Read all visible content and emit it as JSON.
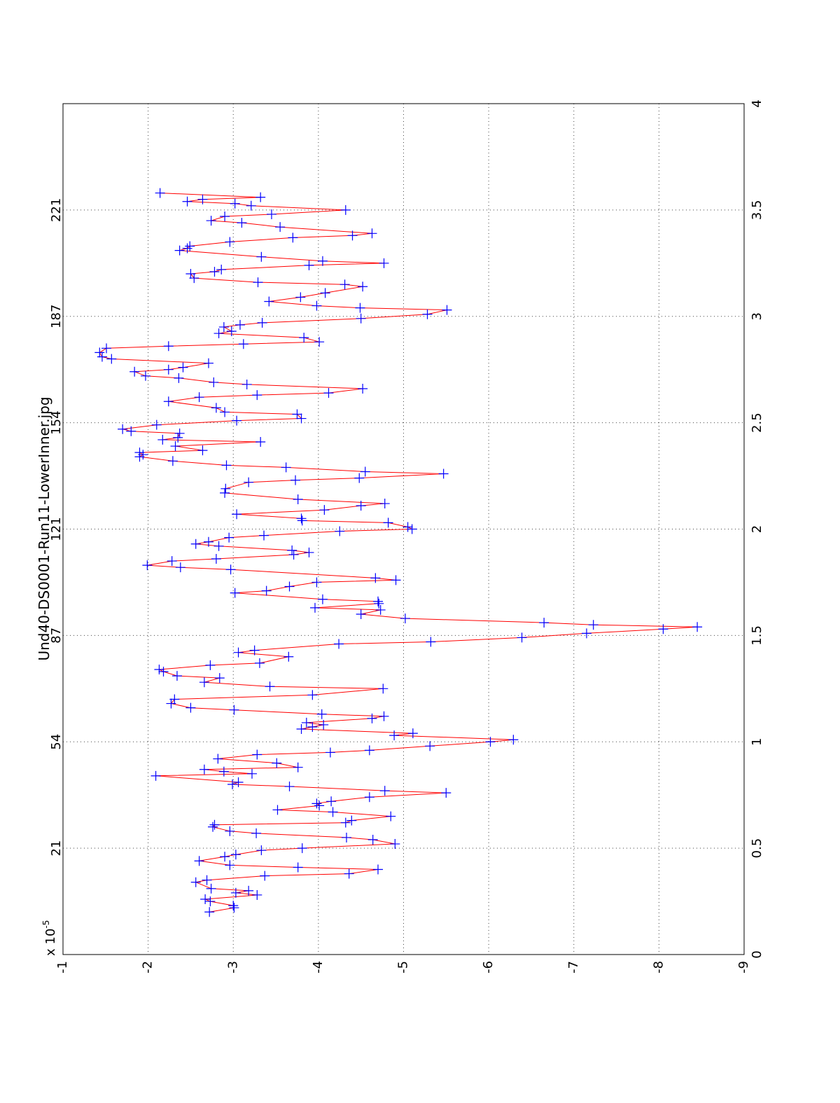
{
  "chart_data": {
    "type": "line",
    "title": "Und40-DS0001-Run11-LowerInner.jpg",
    "offset_text": {
      "base": "x 10",
      "exponent": "-5"
    },
    "annotations": [
      {
        "x": 0.5,
        "text": "21"
      },
      {
        "x": 1,
        "text": "54"
      },
      {
        "x": 1.5,
        "text": "87"
      },
      {
        "x": 2,
        "text": "121"
      },
      {
        "x": 2.5,
        "text": "154"
      },
      {
        "x": 3,
        "text": "187"
      },
      {
        "x": 3.5,
        "text": "221"
      }
    ],
    "xlim": [
      0,
      4
    ],
    "xticks": [
      0,
      0.5,
      1,
      1.5,
      2,
      2.5,
      3,
      3.5,
      4
    ],
    "ylim": [
      -1,
      -9
    ],
    "yticks": [
      -1,
      -2,
      -3,
      -4,
      -5,
      -6,
      -7,
      -8,
      -9
    ],
    "grid": true,
    "line_color": "#ff0000",
    "marker_color": "#0000ff",
    "x": [
      0.2,
      0.22,
      0.23,
      0.25,
      0.26,
      0.28,
      0.29,
      0.3,
      0.31,
      0.34,
      0.35,
      0.37,
      0.38,
      0.4,
      0.41,
      0.42,
      0.44,
      0.46,
      0.47,
      0.49,
      0.5,
      0.52,
      0.54,
      0.55,
      0.57,
      0.58,
      0.6,
      0.61,
      0.62,
      0.63,
      0.65,
      0.67,
      0.68,
      0.7,
      0.71,
      0.72,
      0.74,
      0.76,
      0.77,
      0.79,
      0.8,
      0.81,
      0.84,
      0.85,
      0.86,
      0.87,
      0.88,
      0.9,
      0.92,
      0.94,
      0.95,
      0.96,
      0.98,
      1.0,
      1.01,
      1.03,
      1.04,
      1.06,
      1.07,
      1.08,
      1.09,
      1.11,
      1.12,
      1.13,
      1.15,
      1.16,
      1.18,
      1.2,
      1.22,
      1.25,
      1.26,
      1.28,
      1.3,
      1.31,
      1.33,
      1.34,
      1.36,
      1.37,
      1.4,
      1.42,
      1.43,
      1.46,
      1.47,
      1.49,
      1.51,
      1.53,
      1.54,
      1.55,
      1.56,
      1.58,
      1.6,
      1.62,
      1.63,
      1.65,
      1.66,
      1.67,
      1.7,
      1.71,
      1.73,
      1.75,
      1.76,
      1.77,
      1.81,
      1.82,
      1.83,
      1.85,
      1.86,
      1.88,
      1.89,
      1.9,
      1.92,
      1.93,
      1.94,
      1.96,
      1.97,
      1.99,
      2.0,
      2.01,
      2.03,
      2.04,
      2.05,
      2.07,
      2.09,
      2.11,
      2.12,
      2.14,
      2.17,
      2.19,
      2.22,
      2.23,
      2.24,
      2.26,
      2.27,
      2.29,
      2.3,
      2.32,
      2.34,
      2.35,
      2.36,
      2.37,
      2.39,
      2.41,
      2.42,
      2.43,
      2.45,
      2.46,
      2.47,
      2.49,
      2.51,
      2.52,
      2.54,
      2.55,
      2.57,
      2.6,
      2.62,
      2.63,
      2.64,
      2.66,
      2.68,
      2.69,
      2.71,
      2.72,
      2.74,
      2.75,
      2.76,
      2.78,
      2.8,
      2.81,
      2.83,
      2.85,
      2.86,
      2.87,
      2.88,
      2.9,
      2.92,
      2.93,
      2.95,
      2.96,
      2.97,
      2.99,
      3.01,
      3.03,
      3.04,
      3.05,
      3.07,
      3.09,
      3.11,
      3.14,
      3.15,
      3.16,
      3.18,
      3.2,
      3.21,
      3.22,
      3.24,
      3.25,
      3.26,
      3.28,
      3.31,
      3.32,
      3.33,
      3.35,
      3.37,
      3.38,
      3.39,
      3.42,
      3.44,
      3.45,
      3.47,
      3.48,
      3.5,
      3.52,
      3.53,
      3.54,
      3.55,
      3.56,
      3.58
    ],
    "values": [
      -2.72,
      -3.01,
      -3.0,
      -2.73,
      -2.67,
      -3.28,
      -3.03,
      -3.18,
      -2.74,
      -2.56,
      -2.69,
      -3.37,
      -4.36,
      -4.7,
      -3.76,
      -2.96,
      -2.6,
      -2.9,
      -3.03,
      -3.33,
      -3.81,
      -4.9,
      -4.64,
      -4.33,
      -3.27,
      -2.96,
      -2.76,
      -2.78,
      -4.32,
      -4.39,
      -4.85,
      -4.17,
      -3.52,
      -4.01,
      -3.98,
      -4.15,
      -4.6,
      -5.5,
      -4.78,
      -3.66,
      -2.99,
      -3.06,
      -2.09,
      -3.22,
      -2.89,
      -2.66,
      -3.76,
      -3.51,
      -2.82,
      -3.28,
      -4.14,
      -4.6,
      -5.31,
      -6.02,
      -6.29,
      -4.89,
      -5.11,
      -3.8,
      -3.93,
      -4.06,
      -3.86,
      -4.63,
      -4.77,
      -4.04,
      -3.01,
      -2.5,
      -2.27,
      -2.31,
      -3.93,
      -4.76,
      -3.43,
      -2.66,
      -2.84,
      -2.34,
      -2.18,
      -2.13,
      -2.73,
      -3.31,
      -3.65,
      -3.06,
      -3.25,
      -4.24,
      -5.32,
      -6.39,
      -7.15,
      -8.05,
      -8.45,
      -7.23,
      -6.65,
      -5.02,
      -4.5,
      -4.73,
      -3.96,
      -4.71,
      -4.7,
      -4.05,
      -3.02,
      -3.39,
      -3.66,
      -3.98,
      -4.91,
      -4.67,
      -2.97,
      -2.38,
      -1.99,
      -2.28,
      -2.8,
      -3.71,
      -3.89,
      -3.69,
      -2.83,
      -2.56,
      -2.71,
      -2.95,
      -3.36,
      -4.25,
      -5.1,
      -5.05,
      -4.82,
      -3.81,
      -3.8,
      -3.04,
      -4.07,
      -4.5,
      -4.78,
      -3.76,
      -2.9,
      -2.91,
      -3.18,
      -3.73,
      -4.48,
      -5.47,
      -4.55,
      -3.62,
      -2.92,
      -2.29,
      -1.9,
      -1.94,
      -1.9,
      -2.64,
      -2.32,
      -3.32,
      -2.17,
      -2.35,
      -2.37,
      -1.8,
      -1.7,
      -2.1,
      -3.04,
      -3.8,
      -3.75,
      -2.9,
      -2.8,
      -2.24,
      -2.6,
      -3.28,
      -4.12,
      -4.52,
      -3.16,
      -2.77,
      -2.36,
      -1.97,
      -1.84,
      -2.24,
      -2.41,
      -2.71,
      -1.57,
      -1.46,
      -1.43,
      -1.51,
      -2.24,
      -3.12,
      -4.01,
      -3.83,
      -2.83,
      -2.98,
      -2.89,
      -3.08,
      -3.34,
      -4.5,
      -5.28,
      -5.51,
      -4.49,
      -3.98,
      -3.42,
      -3.79,
      -4.08,
      -4.52,
      -4.31,
      -3.29,
      -2.54,
      -2.5,
      -2.78,
      -2.86,
      -3.89,
      -4.77,
      -4.05,
      -3.33,
      -2.37,
      -2.46,
      -2.49,
      -2.96,
      -3.7,
      -4.4,
      -4.63,
      -3.55,
      -3.1,
      -2.74,
      -2.9,
      -3.45,
      -4.32,
      -3.21,
      -3.02,
      -2.46,
      -2.64,
      -3.32,
      -2.14
    ]
  }
}
